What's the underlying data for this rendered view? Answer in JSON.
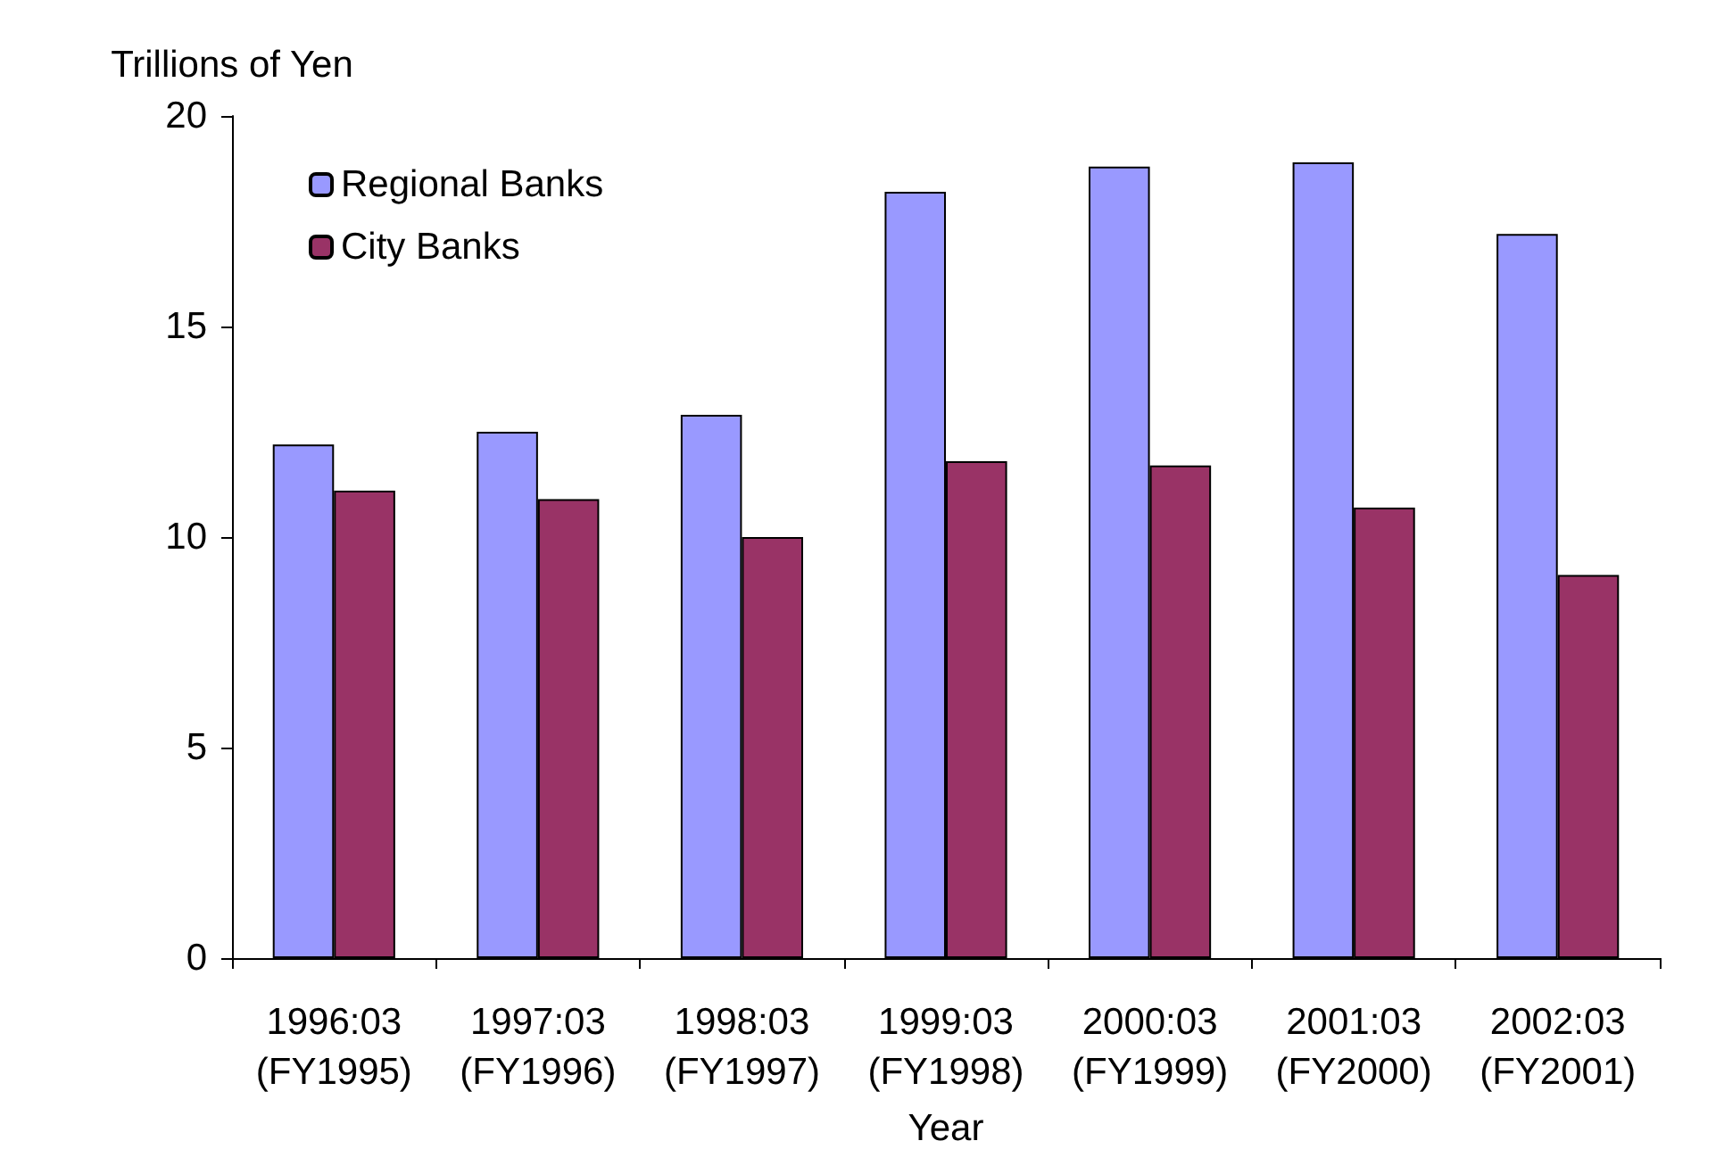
{
  "chart_data": {
    "type": "bar",
    "xlabel": "Year",
    "ylabel": "Trillions of Yen",
    "categories": [
      "1996:03\n(FY1995)",
      "1997:03\n(FY1996)",
      "1998:03\n(FY1997)",
      "1999:03\n(FY1998)",
      "2000:03\n(FY1999)",
      "2001:03\n(FY2000)",
      "2002:03\n(FY2001)"
    ],
    "series": [
      {
        "name": "Regional Banks",
        "color": "#9999ff",
        "values": [
          12.2,
          12.5,
          12.9,
          18.2,
          18.8,
          18.9,
          17.2
        ]
      },
      {
        "name": "City Banks",
        "color": "#993366",
        "values": [
          11.1,
          10.9,
          10.0,
          11.8,
          11.7,
          10.7,
          9.1
        ]
      }
    ],
    "ylim": [
      0,
      20
    ],
    "yticks": [
      0,
      5,
      10,
      15,
      20
    ],
    "grid": false,
    "legend": "top left"
  }
}
